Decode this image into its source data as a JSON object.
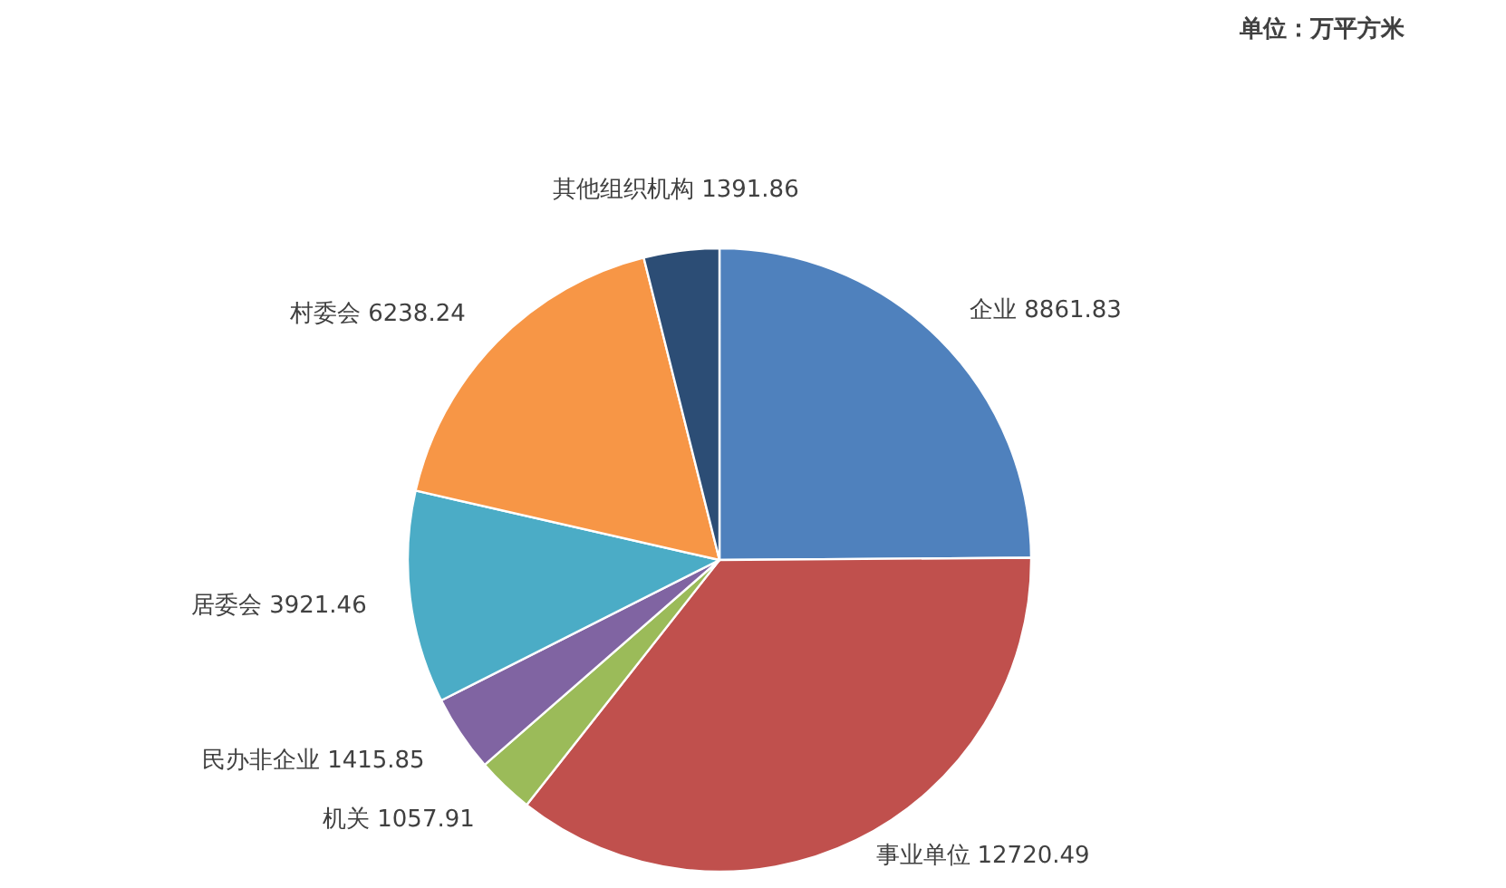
{
  "chart_data": {
    "type": "pie",
    "annotations": [
      "单位：万平方米"
    ],
    "categories": [
      "企业",
      "事业单位",
      "机关",
      "民办非企业",
      "居委会",
      "村委会",
      "其他组织机构"
    ],
    "values": [
      8861.83,
      12720.49,
      1057.91,
      1415.85,
      3921.46,
      6238.24,
      1391.86
    ],
    "colors": [
      "#4f81bd",
      "#c0504d",
      "#9bbb59",
      "#8064a2",
      "#4bacc6",
      "#f79646",
      "#2c4d75"
    ],
    "data_labels": true
  }
}
